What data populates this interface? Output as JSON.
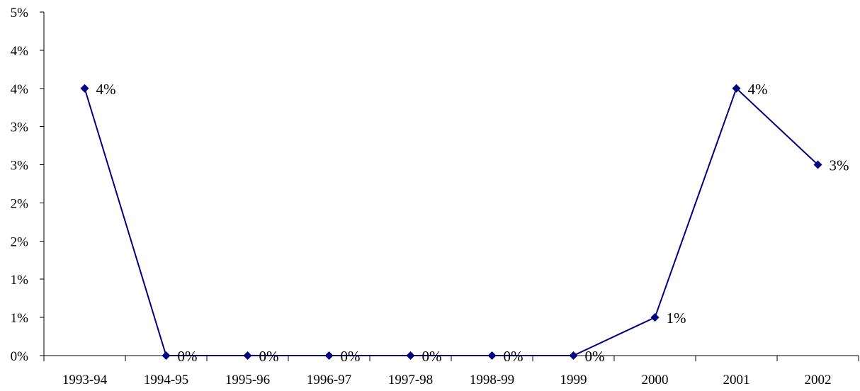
{
  "chart_data": {
    "type": "line",
    "title": "",
    "xlabel": "",
    "ylabel": "",
    "categories": [
      "1993-94",
      "1994-95",
      "1995-96",
      "1996-97",
      "1997-98",
      "1998-99",
      "1999",
      "2000",
      "2001",
      "2002"
    ],
    "series": [
      {
        "values": [
          3.5,
          0,
          0,
          0,
          0,
          0,
          0,
          0.5,
          3.5,
          2.5
        ],
        "data_labels": [
          "4%",
          "0%",
          "0%",
          "0%",
          "0%",
          "0%",
          "0%",
          "1%",
          "4%",
          "3%"
        ],
        "color": "#000080",
        "marker": "diamond"
      }
    ],
    "ylim": [
      0,
      4.5
    ],
    "y_ticks": [
      0,
      0.5,
      1,
      1.5,
      2,
      2.5,
      3,
      3.5,
      4,
      4.5
    ],
    "y_tick_labels": [
      "0%",
      "1%",
      "1%",
      "2%",
      "2%",
      "3%",
      "3%",
      "4%",
      "4%",
      "5%"
    ],
    "grid": false,
    "legend": "none"
  }
}
